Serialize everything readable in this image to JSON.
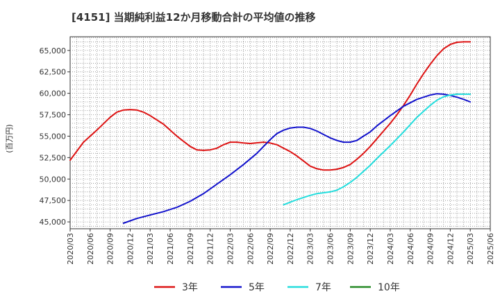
{
  "chart_data": {
    "type": "line",
    "title": "[4151]  当期純利益12か月移動合計の平均値の推移",
    "ylabel": "(百万円)",
    "xlabel": "",
    "ylim": [
      44200,
      66600
    ],
    "yticks": [
      45000,
      47500,
      50000,
      52500,
      55000,
      57500,
      60000,
      62500,
      65000
    ],
    "ytick_labels": [
      "45,000",
      "47,500",
      "50,000",
      "52,500",
      "55,000",
      "57,500",
      "60,000",
      "62,500",
      "65,000"
    ],
    "x_ticks": [
      "2020/03",
      "2020/06",
      "2020/09",
      "2020/12",
      "2021/03",
      "2021/06",
      "2021/09",
      "2021/12",
      "2022/03",
      "2022/06",
      "2022/09",
      "2022/12",
      "2023/03",
      "2023/06",
      "2023/09",
      "2023/12",
      "2024/03",
      "2024/06",
      "2024/09",
      "2024/12",
      "2025/03",
      "2025/06"
    ],
    "grid": true,
    "legend_position": "bottom",
    "series": [
      {
        "name": "3年",
        "color": "#dd1111",
        "x": [
          "2020/03",
          "2020/05",
          "2020/07",
          "2020/09",
          "2020/10",
          "2020/11",
          "2020/12",
          "2021/01",
          "2021/02",
          "2021/03",
          "2021/05",
          "2021/07",
          "2021/09",
          "2021/10",
          "2021/11",
          "2021/12",
          "2022/01",
          "2022/02",
          "2022/03",
          "2022/04",
          "2022/05",
          "2022/06",
          "2022/08",
          "2022/09",
          "2022/10",
          "2022/11",
          "2022/12",
          "2023/01",
          "2023/02",
          "2023/03",
          "2023/04",
          "2023/05",
          "2023/06",
          "2023/07",
          "2023/08",
          "2023/09",
          "2023/10",
          "2023/11",
          "2023/12",
          "2024/01",
          "2024/02",
          "2024/03",
          "2024/04",
          "2024/05",
          "2024/06",
          "2024/07",
          "2024/08",
          "2024/09",
          "2024/10",
          "2024/11",
          "2024/12",
          "2025/01",
          "2025/02",
          "2025/03"
        ],
        "values": [
          52200,
          54300,
          55700,
          57200,
          57800,
          58050,
          58100,
          58050,
          57800,
          57400,
          56400,
          55000,
          53800,
          53400,
          53350,
          53400,
          53600,
          54000,
          54300,
          54300,
          54200,
          54150,
          54300,
          54200,
          54000,
          53600,
          53200,
          52700,
          52100,
          51500,
          51200,
          51050,
          51050,
          51150,
          51350,
          51700,
          52300,
          53000,
          53800,
          54700,
          55600,
          56500,
          57500,
          58600,
          59800,
          61100,
          62300,
          63400,
          64400,
          65200,
          65700,
          65950,
          66000,
          66000
        ]
      },
      {
        "name": "5年",
        "color": "#1111cc",
        "x": [
          "2020/11",
          "2021/01",
          "2021/03",
          "2021/05",
          "2021/07",
          "2021/09",
          "2021/11",
          "2022/01",
          "2022/03",
          "2022/05",
          "2022/07",
          "2022/09",
          "2022/10",
          "2022/11",
          "2022/12",
          "2023/01",
          "2023/02",
          "2023/03",
          "2023/04",
          "2023/05",
          "2023/06",
          "2023/07",
          "2023/08",
          "2023/09",
          "2023/10",
          "2023/11",
          "2023/12",
          "2024/01",
          "2024/03",
          "2024/05",
          "2024/07",
          "2024/09",
          "2024/10",
          "2024/11",
          "2024/12",
          "2025/01",
          "2025/02",
          "2025/03"
        ],
        "values": [
          44850,
          45400,
          45800,
          46200,
          46700,
          47400,
          48300,
          49400,
          50500,
          51700,
          53000,
          54600,
          55300,
          55700,
          55950,
          56050,
          56050,
          55900,
          55600,
          55200,
          54800,
          54500,
          54300,
          54300,
          54500,
          55000,
          55500,
          56200,
          57400,
          58500,
          59300,
          59800,
          59950,
          59900,
          59750,
          59550,
          59300,
          59000
        ]
      },
      {
        "name": "7年",
        "color": "#22dddd",
        "x": [
          "2022/11",
          "2022/12",
          "2023/01",
          "2023/02",
          "2023/03",
          "2023/04",
          "2023/05",
          "2023/06",
          "2023/07",
          "2023/08",
          "2023/09",
          "2023/10",
          "2023/11",
          "2023/12",
          "2024/01",
          "2024/03",
          "2024/05",
          "2024/07",
          "2024/09",
          "2024/10",
          "2024/11",
          "2024/12",
          "2025/01",
          "2025/02",
          "2025/03"
        ],
        "values": [
          47000,
          47300,
          47600,
          47850,
          48100,
          48300,
          48400,
          48500,
          48700,
          49100,
          49600,
          50200,
          50900,
          51600,
          52400,
          53900,
          55500,
          57200,
          58600,
          59200,
          59600,
          59800,
          59900,
          59900,
          59900
        ]
      },
      {
        "name": "10年",
        "color": "#228822",
        "x": [],
        "values": []
      }
    ]
  }
}
